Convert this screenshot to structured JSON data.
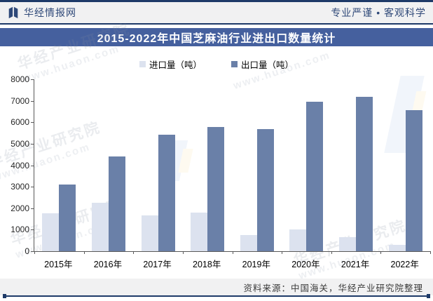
{
  "header": {
    "brand": "华经情报网",
    "slogan": "专业严谨 • 客观科学"
  },
  "title": "2015-2022年中国芝麻油行业进出口数量统计",
  "legend": [
    {
      "label": "进口量（吨）",
      "color": "#DCE2EF"
    },
    {
      "label": "出口量（吨）",
      "color": "#6A80A8"
    }
  ],
  "footer": {
    "source": "资料来源：中国海关，华经产业研究院整理"
  },
  "watermark": {
    "line1": "华经产业研究院",
    "line2": "www.huaon.com"
  },
  "colors": {
    "banner_blue": "#45609E",
    "navy_rule": "#1E3A68",
    "header_text": "#2E4878",
    "import_bar": "#DCE2EF",
    "export_bar": "#6A80A8",
    "axis": "#595959"
  },
  "chart_data": {
    "type": "bar",
    "title": "2015-2022年中国芝麻油行业进出口数量统计",
    "categories": [
      "2015年",
      "2016年",
      "2017年",
      "2018年",
      "2019年",
      "2020年",
      "2021年",
      "2022年"
    ],
    "series": [
      {
        "name": "进口量（吨）",
        "color": "#DCE2EF",
        "values": [
          1750,
          2250,
          1650,
          1800,
          750,
          1000,
          650,
          300
        ]
      },
      {
        "name": "出口量（吨）",
        "color": "#6A80A8",
        "values": [
          3100,
          4400,
          5420,
          5790,
          5670,
          6940,
          7190,
          6550
        ]
      }
    ],
    "xlabel": "",
    "ylabel": "",
    "ylim": [
      0,
      8000
    ],
    "ytick_step": 1000,
    "grid": false,
    "legend_position": "top-center"
  }
}
